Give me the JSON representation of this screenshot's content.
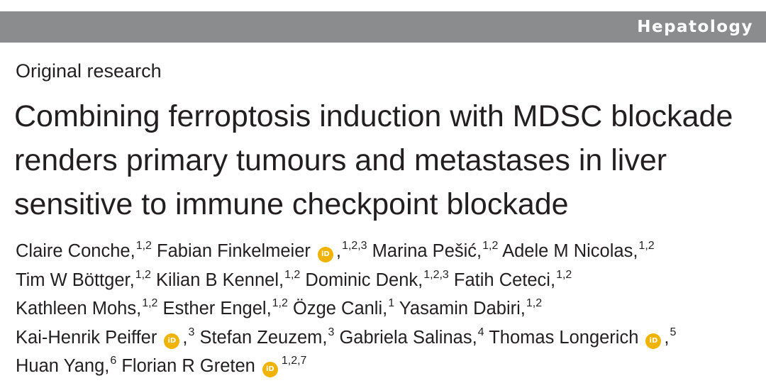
{
  "header": {
    "journal": "Hepatology",
    "band_color": "#8a8c8e"
  },
  "article": {
    "type": "Original research",
    "title_lines": [
      "Combining ferroptosis induction with MDSC blockade",
      "renders primary tumours and metastases in liver",
      "sensitive to immune checkpoint blockade"
    ]
  },
  "authors": {
    "orcid_color": "#f0b300",
    "orcid_icon": "orcid-icon",
    "list": [
      {
        "name": "Claire Conche",
        "aff": "1,2",
        "orcid": false
      },
      {
        "name": "Fabian Finkelmeier",
        "aff": "1,2,3",
        "orcid": true
      },
      {
        "name": "Marina Pešić",
        "aff": "1,2",
        "orcid": false
      },
      {
        "name": "Adele M Nicolas",
        "aff": "1,2",
        "orcid": false
      },
      {
        "name": "Tim W Böttger",
        "aff": "1,2",
        "orcid": false
      },
      {
        "name": "Kilian B Kennel",
        "aff": "1,2",
        "orcid": false
      },
      {
        "name": "Dominic Denk",
        "aff": "1,2,3",
        "orcid": false
      },
      {
        "name": "Fatih Ceteci",
        "aff": "1,2",
        "orcid": false
      },
      {
        "name": "Kathleen Mohs",
        "aff": "1,2",
        "orcid": false
      },
      {
        "name": "Esther Engel",
        "aff": "1,2",
        "orcid": false
      },
      {
        "name": "Özge Canli",
        "aff": "1",
        "orcid": false
      },
      {
        "name": "Yasamin Dabiri",
        "aff": "1,2",
        "orcid": false
      },
      {
        "name": "Kai-Henrik Peiffer",
        "aff": "3",
        "orcid": true
      },
      {
        "name": "Stefan Zeuzem",
        "aff": "3",
        "orcid": false
      },
      {
        "name": "Gabriela Salinas",
        "aff": "4",
        "orcid": false
      },
      {
        "name": "Thomas Longerich",
        "aff": "5",
        "orcid": true
      },
      {
        "name": "Huan Yang",
        "aff": "6",
        "orcid": false
      },
      {
        "name": "Florian R Greten",
        "aff": "1,2,7",
        "orcid": true
      }
    ]
  }
}
